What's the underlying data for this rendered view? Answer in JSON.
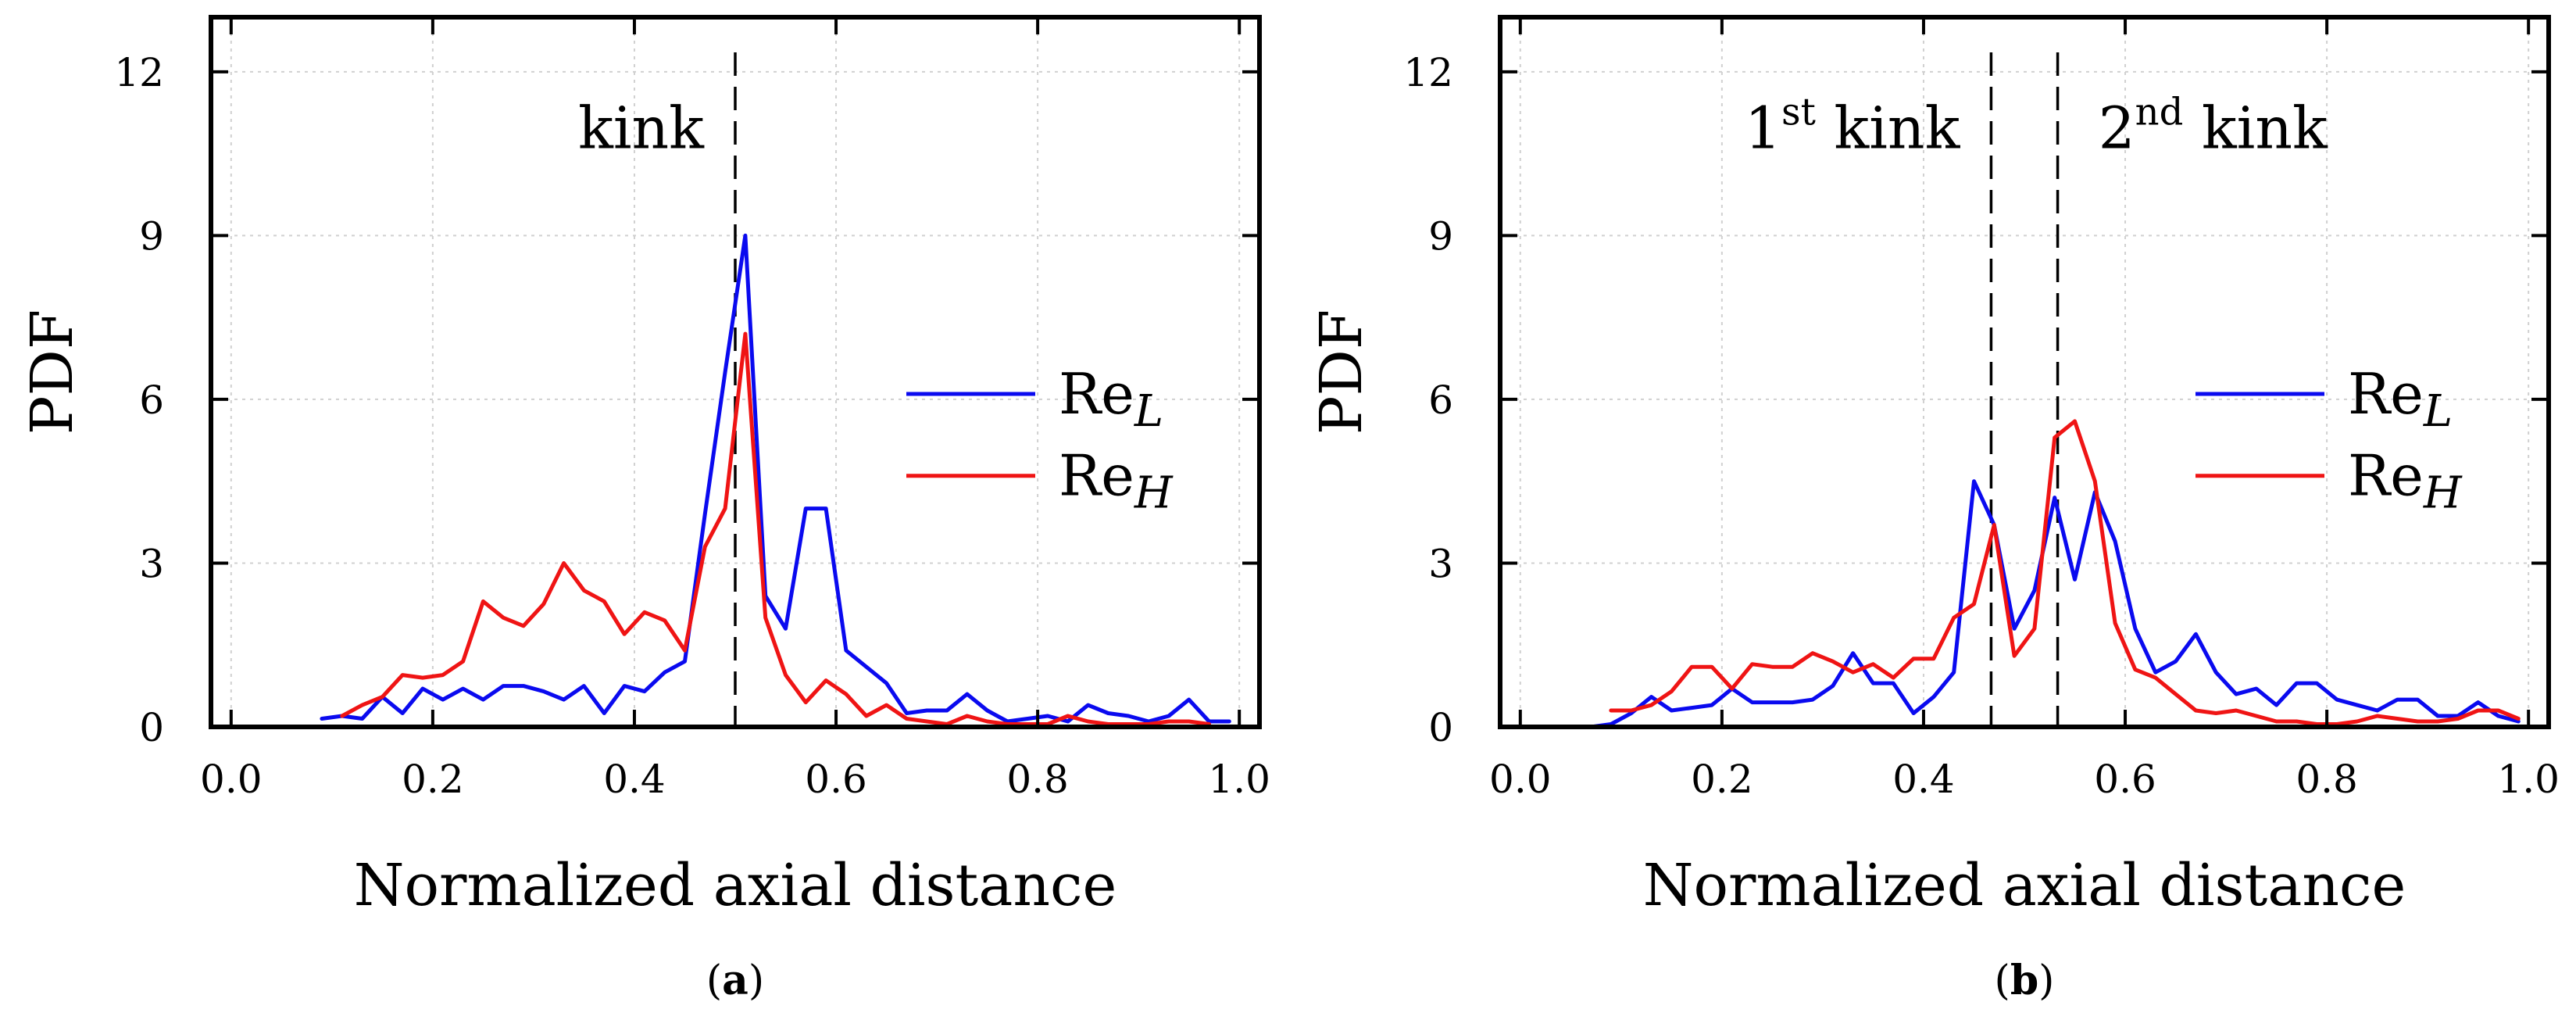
{
  "colors": {
    "ReL": "#0a0aef",
    "ReH": "#ef1414",
    "axis": "#000000",
    "grid": "#d0d0d0"
  },
  "chart_data": [
    {
      "type": "line",
      "panel": "a",
      "caption_letter": "a",
      "caption": "(a)",
      "title": "",
      "xlabel": "Normalized axial distance",
      "ylabel": "PDF",
      "xlim": [
        -0.02,
        1.02
      ],
      "ylim": [
        0,
        13
      ],
      "xticks": [
        0.0,
        0.2,
        0.4,
        0.6,
        0.8,
        1.0
      ],
      "xtick_labels": [
        "0.0",
        "0.2",
        "0.4",
        "0.6",
        "0.8",
        "1.0"
      ],
      "yticks": [
        0,
        3,
        6,
        9,
        12
      ],
      "ytick_labels": [
        "0",
        "3",
        "6",
        "9",
        "12"
      ],
      "grid": true,
      "legend_position": "right",
      "vlines": [
        {
          "x": 0.5,
          "label": "kink",
          "label_side": "left"
        }
      ],
      "series": [
        {
          "name": "Re",
          "subscript": "L",
          "color_key": "ReL",
          "x": [
            0.09,
            0.11,
            0.13,
            0.15,
            0.17,
            0.19,
            0.21,
            0.23,
            0.25,
            0.27,
            0.29,
            0.31,
            0.33,
            0.35,
            0.37,
            0.39,
            0.41,
            0.43,
            0.45,
            0.47,
            0.49,
            0.51,
            0.53,
            0.55,
            0.57,
            0.59,
            0.61,
            0.63,
            0.65,
            0.67,
            0.69,
            0.71,
            0.73,
            0.75,
            0.77,
            0.79,
            0.81,
            0.83,
            0.85,
            0.87,
            0.89,
            0.91,
            0.93,
            0.95,
            0.97,
            0.99
          ],
          "y": [
            0.15,
            0.2,
            0.15,
            0.55,
            0.25,
            0.7,
            0.5,
            0.7,
            0.5,
            0.75,
            0.75,
            0.65,
            0.5,
            0.75,
            0.25,
            0.75,
            0.65,
            1.0,
            1.2,
            3.9,
            6.5,
            9.0,
            2.4,
            1.8,
            4.0,
            4.0,
            1.4,
            1.1,
            0.8,
            0.25,
            0.3,
            0.3,
            0.6,
            0.3,
            0.1,
            0.15,
            0.2,
            0.1,
            0.4,
            0.25,
            0.2,
            0.1,
            0.2,
            0.5,
            0.1,
            0.1
          ]
        },
        {
          "name": "Re",
          "subscript": "H",
          "color_key": "ReH",
          "x": [
            0.11,
            0.13,
            0.15,
            0.17,
            0.19,
            0.21,
            0.23,
            0.25,
            0.27,
            0.29,
            0.31,
            0.33,
            0.35,
            0.37,
            0.39,
            0.41,
            0.43,
            0.45,
            0.47,
            0.49,
            0.51,
            0.53,
            0.55,
            0.57,
            0.59,
            0.61,
            0.63,
            0.65,
            0.67,
            0.69,
            0.71,
            0.73,
            0.75,
            0.77,
            0.79,
            0.81,
            0.83,
            0.85,
            0.87,
            0.89,
            0.91,
            0.93,
            0.95,
            0.97
          ],
          "y": [
            0.2,
            0.4,
            0.55,
            0.95,
            0.9,
            0.95,
            1.2,
            2.3,
            2.0,
            1.85,
            2.25,
            3.0,
            2.5,
            2.3,
            1.7,
            2.1,
            1.95,
            1.4,
            3.3,
            4.0,
            7.2,
            2.0,
            0.95,
            0.45,
            0.85,
            0.6,
            0.2,
            0.4,
            0.15,
            0.1,
            0.05,
            0.2,
            0.1,
            0.05,
            0.05,
            0.05,
            0.2,
            0.1,
            0.05,
            0.05,
            0.05,
            0.1,
            0.1,
            0.05
          ]
        }
      ]
    },
    {
      "type": "line",
      "panel": "b",
      "caption_letter": "b",
      "caption": "(b)",
      "title": "",
      "xlabel": "Normalized axial distance",
      "ylabel": "PDF",
      "xlim": [
        -0.02,
        1.02
      ],
      "ylim": [
        0,
        13
      ],
      "xticks": [
        0.0,
        0.2,
        0.4,
        0.6,
        0.8,
        1.0
      ],
      "xtick_labels": [
        "0.0",
        "0.2",
        "0.4",
        "0.6",
        "0.8",
        "1.0"
      ],
      "yticks": [
        0,
        3,
        6,
        9,
        12
      ],
      "ytick_labels": [
        "0",
        "3",
        "6",
        "9",
        "12"
      ],
      "grid": true,
      "legend_position": "right",
      "vlines": [
        {
          "x": 0.467,
          "label": "1",
          "label_sup": "st",
          "label_rest": " kink",
          "label_side": "left"
        },
        {
          "x": 0.533,
          "label": "2",
          "label_sup": "nd",
          "label_rest": " kink",
          "label_side": "right"
        }
      ],
      "series": [
        {
          "name": "Re",
          "subscript": "L",
          "color_key": "ReL",
          "x": [
            0.07,
            0.09,
            0.11,
            0.13,
            0.15,
            0.17,
            0.19,
            0.21,
            0.23,
            0.25,
            0.27,
            0.29,
            0.31,
            0.33,
            0.35,
            0.37,
            0.39,
            0.41,
            0.43,
            0.45,
            0.47,
            0.49,
            0.51,
            0.53,
            0.55,
            0.57,
            0.59,
            0.61,
            0.63,
            0.65,
            0.67,
            0.69,
            0.71,
            0.73,
            0.75,
            0.77,
            0.79,
            0.81,
            0.83,
            0.85,
            0.87,
            0.89,
            0.91,
            0.93,
            0.95,
            0.97,
            0.99
          ],
          "y": [
            0.0,
            0.05,
            0.25,
            0.55,
            0.3,
            0.35,
            0.4,
            0.7,
            0.45,
            0.45,
            0.45,
            0.5,
            0.75,
            1.35,
            0.8,
            0.8,
            0.25,
            0.55,
            1.0,
            4.5,
            3.7,
            1.8,
            2.5,
            4.2,
            2.7,
            4.3,
            3.4,
            1.8,
            1.0,
            1.2,
            1.7,
            1.0,
            0.6,
            0.7,
            0.4,
            0.8,
            0.8,
            0.5,
            0.4,
            0.3,
            0.5,
            0.5,
            0.2,
            0.2,
            0.45,
            0.2,
            0.1
          ]
        },
        {
          "name": "Re",
          "subscript": "H",
          "color_key": "ReH",
          "x": [
            0.09,
            0.11,
            0.13,
            0.15,
            0.17,
            0.19,
            0.21,
            0.23,
            0.25,
            0.27,
            0.29,
            0.31,
            0.33,
            0.35,
            0.37,
            0.39,
            0.41,
            0.43,
            0.45,
            0.47,
            0.49,
            0.51,
            0.53,
            0.55,
            0.57,
            0.59,
            0.61,
            0.63,
            0.65,
            0.67,
            0.69,
            0.71,
            0.73,
            0.75,
            0.77,
            0.79,
            0.81,
            0.83,
            0.85,
            0.87,
            0.89,
            0.91,
            0.93,
            0.95,
            0.97,
            0.99
          ],
          "y": [
            0.3,
            0.3,
            0.4,
            0.65,
            1.1,
            1.1,
            0.7,
            1.15,
            1.1,
            1.1,
            1.35,
            1.2,
            1.0,
            1.15,
            0.9,
            1.25,
            1.25,
            2.0,
            2.25,
            3.7,
            1.3,
            1.8,
            5.3,
            5.6,
            4.5,
            1.9,
            1.05,
            0.9,
            0.6,
            0.3,
            0.25,
            0.3,
            0.2,
            0.1,
            0.1,
            0.05,
            0.05,
            0.1,
            0.2,
            0.15,
            0.1,
            0.1,
            0.15,
            0.3,
            0.3,
            0.15
          ]
        }
      ]
    }
  ]
}
